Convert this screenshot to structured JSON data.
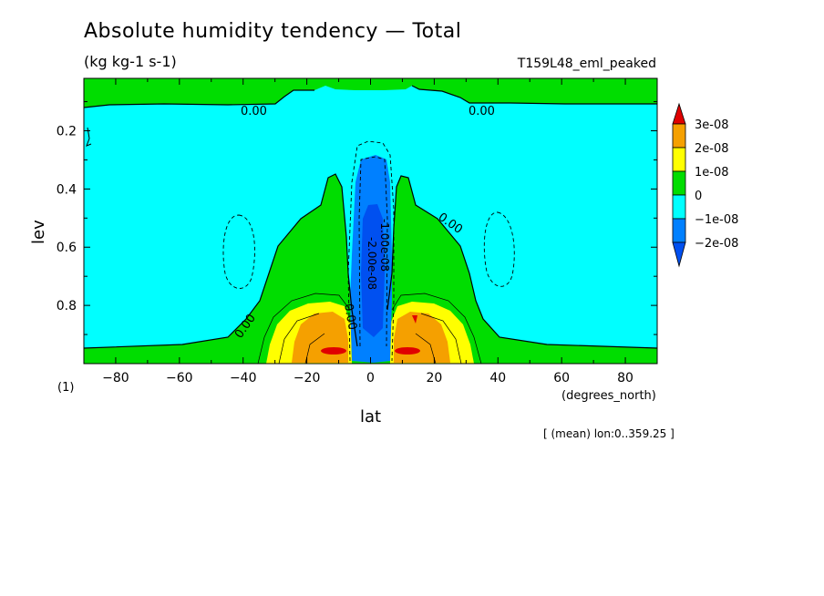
{
  "chart_data": {
    "type": "heatmap",
    "title": "Absolute humidity tendency — Total",
    "subtitle": "(kg kg-1 s-1)",
    "run_label": "T159L48_eml_peaked",
    "xlabel": "lat",
    "xunits": "(degrees_north)",
    "ylabel": "lev",
    "yunits": "(1)",
    "xlim": [
      -90,
      90
    ],
    "ylim": [
      1.0,
      0.02
    ],
    "x_ticks": [
      -80,
      -60,
      -40,
      -20,
      0,
      20,
      40,
      60,
      80
    ],
    "y_ticks": [
      0.2,
      0.4,
      0.6,
      0.8
    ],
    "colorbar_labels": [
      "3e-08",
      "2e-08",
      "1e-08",
      "0",
      "−1e-08",
      "−2e-08"
    ],
    "colorbar_colors": [
      "#e00000",
      "#f5a000",
      "#ffff00",
      "#00dd00",
      "#00ffff",
      "#0080ff",
      "#0050f0"
    ],
    "contour_labels": [
      "0.00",
      "0.00",
      "0.00",
      "0.00",
      "0.00",
      "-1.00e-08",
      "-2.00e-08"
    ],
    "footnote": "[ (mean) lon:0..359.25 ]",
    "grid": false
  }
}
